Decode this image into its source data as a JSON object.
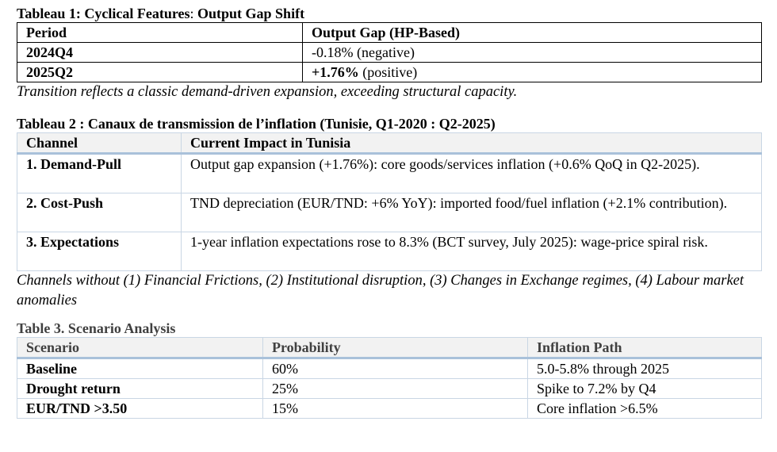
{
  "table1": {
    "caption_bold1": "Tableau 1: Cyclical Features",
    "caption_colon": ":",
    "caption_bold2": " Output Gap Shift",
    "headers": [
      "Period",
      "Output Gap (HP-Based)"
    ],
    "rows": [
      {
        "period": "2024Q4",
        "value_bold": "",
        "value_text": "-0.18% (negative)"
      },
      {
        "period": "2025Q2",
        "value_bold": "+1.76%",
        "value_text": " (positive)"
      }
    ],
    "note": "Transition reflects a classic demand-driven expansion, exceeding structural capacity."
  },
  "table2": {
    "caption": "Tableau 2 : Canaux de transmission de l’inflation (Tunisie, Q1-2020 : Q2-2025)",
    "headers": [
      "Channel",
      "Current Impact in Tunisia"
    ],
    "rows": [
      {
        "channel": "1. Demand-Pull",
        "impact": "Output gap expansion (+1.76%): core goods/services inflation (+0.6% QoQ in Q2-2025)."
      },
      {
        "channel": "2. Cost-Push",
        "impact": "TND depreciation (EUR/TND: +6% YoY): imported food/fuel inflation (+2.1% contribution)."
      },
      {
        "channel": "3. Expectations",
        "impact": "1-year inflation expectations rose to 8.3% (BCT survey, July 2025): wage-price spiral risk."
      }
    ],
    "note": "Channels without (1) Financial Frictions, (2) Institutional disruption, (3) Changes in Exchange regimes, (4) Labour market anomalies"
  },
  "table3": {
    "caption": "Table 3. Scenario Analysis",
    "headers": [
      "Scenario",
      "Probability",
      "Inflation Path"
    ],
    "rows": [
      {
        "scenario": "Baseline",
        "probability": "60%",
        "path": "5.0-5.8% through 2025"
      },
      {
        "scenario": "Drought return",
        "probability": "25%",
        "path": "Spike to 7.2% by Q4"
      },
      {
        "scenario": "EUR/TND >3.50",
        "probability": "15%",
        "path": "Core inflation >6.5%"
      }
    ]
  }
}
